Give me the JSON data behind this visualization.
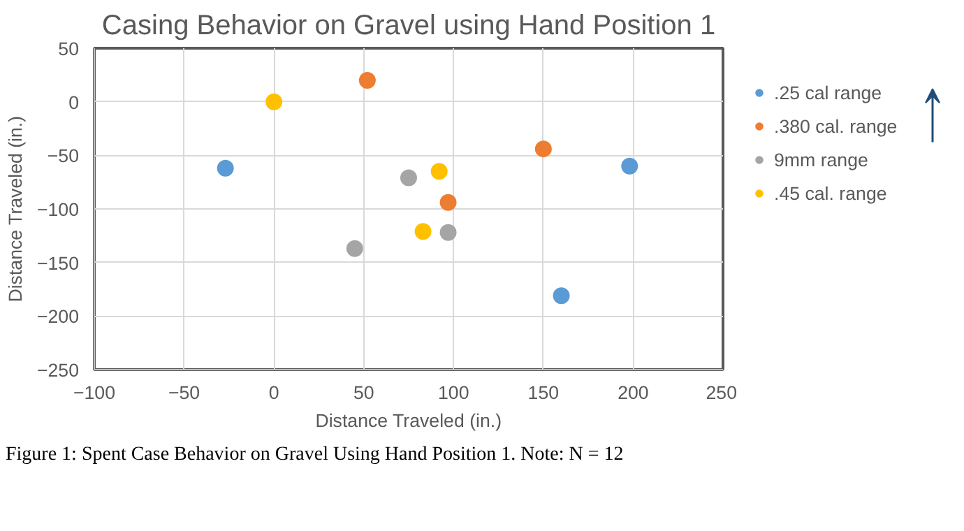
{
  "chart_data": {
    "type": "scatter",
    "title": "Casing Behavior on Gravel using Hand Position 1",
    "xlabel": "Distance Traveled (in.)",
    "ylabel": "Distance Traveled (in.)",
    "xlim": [
      -100,
      250
    ],
    "ylim": [
      -250,
      50
    ],
    "xticks": [
      -100,
      -50,
      0,
      50,
      100,
      150,
      200,
      250
    ],
    "yticks": [
      -250,
      -200,
      -150,
      -100,
      -50,
      0,
      50
    ],
    "grid": true,
    "legend": "right",
    "marker": "circle",
    "series": [
      {
        "name": ".25 cal range",
        "color": "#5b9bd5",
        "x": [
          -27,
          198,
          160
        ],
        "values": [
          -62,
          -60,
          -181
        ]
      },
      {
        "name": ".380 cal. range",
        "color": "#ed7d31",
        "x": [
          52,
          150,
          97
        ],
        "values": [
          20,
          -44,
          -94
        ]
      },
      {
        "name": "9mm range",
        "color": "#a5a5a5",
        "x": [
          75,
          45,
          97
        ],
        "values": [
          -71,
          -137,
          -122
        ]
      },
      {
        "name": ".45 cal. range",
        "color": "#ffc000",
        "x": [
          0,
          92,
          83
        ],
        "values": [
          0,
          -65,
          -121
        ]
      }
    ],
    "annotations": [
      "Figure 1: Spent Case Behavior on Gravel Using Hand Position 1. Note: N = 12"
    ]
  }
}
